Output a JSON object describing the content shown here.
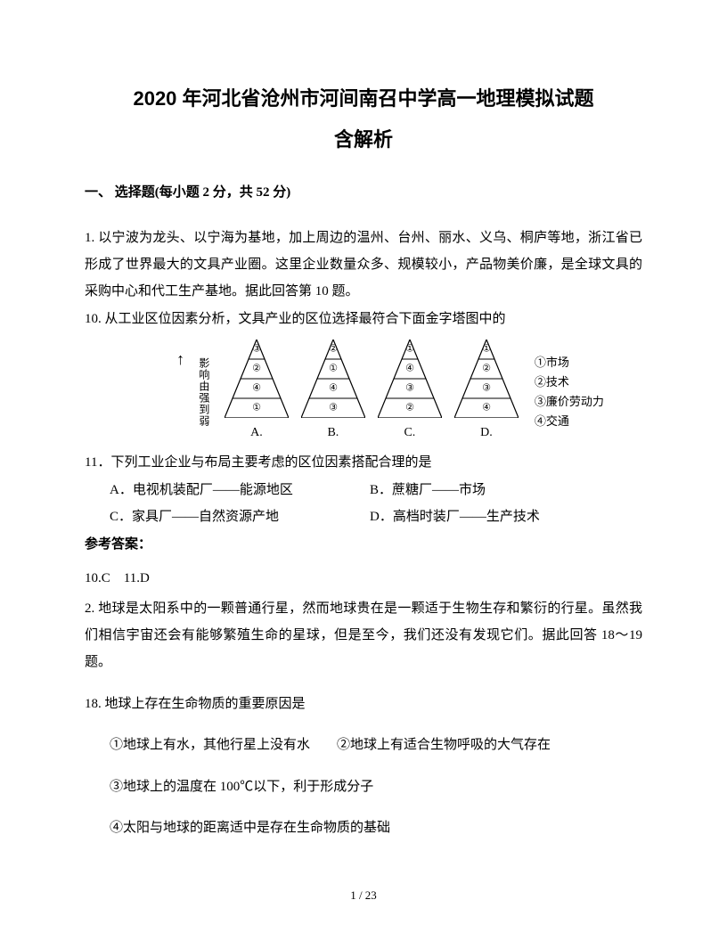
{
  "title": "2020 年河北省沧州市河间南召中学高一地理模拟试题",
  "subtitle": "含解析",
  "section_header": "一、 选择题(每小题 2 分，共 52 分)",
  "q1_intro": "1. 以宁波为龙头、以宁海为基地，加上周边的温州、台州、丽水、义乌、桐庐等地，浙江省已形成了世界最大的文具产业圈。这里企业数量众多、规模较小，产品物美价廉，是全球文具的采购中心和代工生产基地。据此回答第 10 题。",
  "q10": "10. 从工业区位因素分析，文具产业的区位选择最符合下面金字塔图中的",
  "diagram": {
    "y_axis_label": "影响由强到弱",
    "arrow": "↑",
    "pyramids": [
      {
        "label": "A.",
        "order": [
          "③",
          "②",
          "④",
          "①"
        ]
      },
      {
        "label": "B.",
        "order": [
          "②",
          "①",
          "④",
          "③"
        ]
      },
      {
        "label": "C.",
        "order": [
          "①",
          "④",
          "③",
          "②"
        ]
      },
      {
        "label": "D.",
        "order": [
          "①",
          "②",
          "③",
          "④"
        ]
      }
    ],
    "legend": [
      "①市场",
      "②技术",
      "③廉价劳动力",
      "④交通"
    ],
    "stroke": "#000000",
    "fill": "#ffffff",
    "width": 72,
    "height": 88,
    "label_fontsize": 11
  },
  "q11": "11．下列工业企业与布局主要考虑的区位因素搭配合理的是",
  "q11_options": {
    "A": "A．电视机装配厂——能源地区",
    "B": "B．蔗糖厂——市场",
    "C": "C．家具厂——自然资源产地",
    "D": "D．高档时装厂——生产技术"
  },
  "answer_header": "参考答案：",
  "answers": "10.C　11.D",
  "q2_intro": "2. 地球是太阳系中的一颗普通行星，然而地球贵在是一颗适于生物生存和繁衍的行星。虽然我们相信宇宙还会有能够繁殖生命的星球，但是至今，我们还没有发现它们。据此回答 18～19 题。",
  "q18": "18. 地球上存在生命物质的重要原因是",
  "q18_opts": {
    "line1": "①地球上有水，其他行星上没有水　　②地球上有适合生物呼吸的大气存在",
    "line2": "③地球上的温度在 100℃以下，利于形成分子",
    "line3": "④太阳与地球的距离适中是存在生命物质的基础"
  },
  "page_num": "1 / 23"
}
